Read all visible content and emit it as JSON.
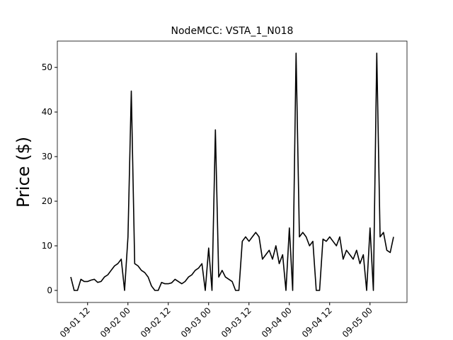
{
  "chart_data": {
    "type": "line",
    "title": "NodeMCC: VSTA_1_N018",
    "y_label": "Price ($)",
    "x": [
      "09-01 07",
      "09-01 08",
      "09-01 09",
      "09-01 10",
      "09-01 11",
      "09-01 12",
      "09-01 13",
      "09-01 14",
      "09-01 15",
      "09-01 16",
      "09-01 17",
      "09-01 18",
      "09-01 19",
      "09-01 20",
      "09-01 21",
      "09-01 22",
      "09-01 23",
      "09-02 00",
      "09-02 01",
      "09-02 02",
      "09-02 03",
      "09-02 04",
      "09-02 05",
      "09-02 06",
      "09-02 07",
      "09-02 08",
      "09-02 09",
      "09-02 10",
      "09-02 11",
      "09-02 12",
      "09-02 13",
      "09-02 14",
      "09-02 15",
      "09-02 16",
      "09-02 17",
      "09-02 18",
      "09-02 19",
      "09-02 20",
      "09-02 21",
      "09-02 22",
      "09-02 23",
      "09-03 00",
      "09-03 01",
      "09-03 02",
      "09-03 03",
      "09-03 04",
      "09-03 05",
      "09-03 06",
      "09-03 07",
      "09-03 08",
      "09-03 09",
      "09-03 10",
      "09-03 11",
      "09-03 12",
      "09-03 13",
      "09-03 14",
      "09-03 15",
      "09-03 16",
      "09-03 17",
      "09-03 18",
      "09-03 19",
      "09-03 20",
      "09-03 21",
      "09-03 22",
      "09-03 23",
      "09-04 00",
      "09-04 01",
      "09-04 02",
      "09-04 03",
      "09-04 04",
      "09-04 05",
      "09-04 06",
      "09-04 07",
      "09-04 08",
      "09-04 09",
      "09-04 10",
      "09-04 11",
      "09-04 12",
      "09-04 13",
      "09-04 14",
      "09-04 15",
      "09-04 16",
      "09-04 17",
      "09-04 18",
      "09-04 19",
      "09-04 20",
      "09-04 21",
      "09-04 22",
      "09-04 23",
      "09-05 00",
      "09-05 01",
      "09-05 02",
      "09-05 03",
      "09-05 04",
      "09-05 05",
      "09-05 06",
      "09-05 07"
    ],
    "series": [
      {
        "color": "#000000",
        "values": [
          3,
          0,
          0,
          2.5,
          2,
          2,
          2.3,
          2.5,
          1.8,
          2,
          3,
          3.5,
          4.5,
          5.5,
          6,
          7,
          0,
          12,
          44.7,
          6,
          5.5,
          4.5,
          4,
          3,
          1,
          0,
          0,
          1.8,
          1.5,
          1.5,
          1.7,
          2.5,
          2,
          1.5,
          2,
          3,
          3.5,
          4.5,
          5,
          6,
          0,
          9.5,
          0,
          36,
          3,
          4.5,
          3,
          2.5,
          2,
          0,
          0,
          11,
          12,
          11,
          12,
          13,
          12,
          7,
          8,
          9,
          7,
          10,
          6,
          8,
          0,
          14,
          0,
          53.2,
          12,
          13,
          12,
          10,
          11,
          0,
          0,
          11.5,
          11,
          12,
          11,
          10,
          12,
          7,
          9,
          8,
          7,
          9,
          6,
          8,
          0,
          14,
          0,
          53.2,
          12,
          13,
          9,
          8.5,
          12
        ]
      }
    ],
    "xlim": [
      "09-01 03",
      "09-05 11"
    ],
    "xticks": [
      "09-01 12",
      "09-02 00",
      "09-02 12",
      "09-03 00",
      "09-03 12",
      "09-04 00",
      "09-04 12",
      "09-05 00"
    ],
    "ylim": [
      -2.7,
      55.9
    ],
    "yticks": [
      0,
      10,
      20,
      30,
      40,
      50
    ]
  }
}
